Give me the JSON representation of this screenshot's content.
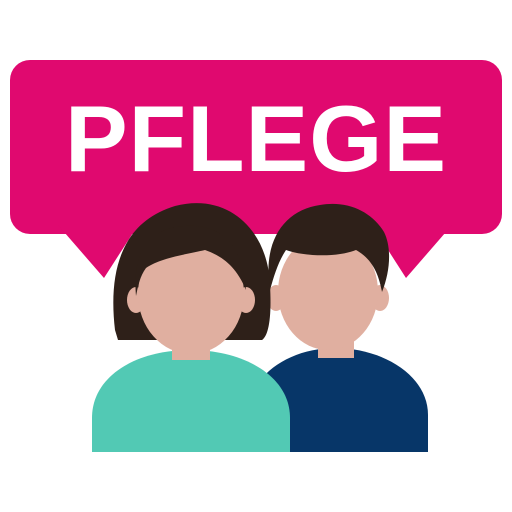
{
  "logo": {
    "word": "PFLEGE"
  },
  "colors": {
    "bubble": "#E0096F",
    "text": "#FFFFFF",
    "hair": "#2E2019",
    "skin": "#E0AFA0",
    "shirt_woman": "#52C9B4",
    "shirt_man": "#073668",
    "background": "#FFFFFF"
  },
  "icons": {
    "bubble": "speech-bubble-icon",
    "woman": "woman-avatar-icon",
    "man": "man-avatar-icon"
  }
}
